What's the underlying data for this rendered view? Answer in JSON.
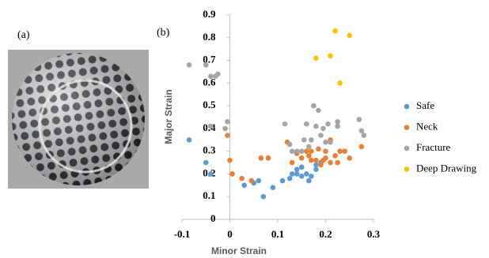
{
  "chart_data": {
    "type": "scatter",
    "annotations": [
      "(a)",
      "(b)"
    ],
    "xlabel": "Minor Strain",
    "ylabel": "Major Strain",
    "xlim": [
      -0.1,
      0.3
    ],
    "xticks": [
      -0.1,
      0,
      0.1,
      0.2,
      0.3
    ],
    "ylim": [
      0,
      0.9
    ],
    "yticks": [
      0,
      0.1,
      0.2,
      0.3,
      0.4,
      0.5,
      0.6,
      0.7,
      0.8,
      0.9
    ],
    "grid": false,
    "legend": "right",
    "series": [
      {
        "name": "Safe",
        "color": "#5b9bd5",
        "x": [
          -0.085,
          -0.05,
          -0.04,
          0.03,
          0.05,
          0.06,
          0.07,
          0.09,
          0.11,
          0.125,
          0.13,
          0.14,
          0.15,
          0.15,
          0.16,
          0.165,
          0.17,
          0.18,
          0.18,
          0.19,
          0.14
        ],
        "values": [
          0.35,
          0.25,
          0.2,
          0.15,
          0.16,
          0.17,
          0.1,
          0.14,
          0.17,
          0.18,
          0.2,
          0.22,
          0.23,
          0.19,
          0.2,
          0.17,
          0.19,
          0.22,
          0.24,
          0.25,
          0.2
        ]
      },
      {
        "name": "Neck",
        "color": "#ed7d31",
        "x": [
          -0.005,
          0,
          0.005,
          0.025,
          0.045,
          0.065,
          0.08,
          0.12,
          0.13,
          0.14,
          0.15,
          0.16,
          0.165,
          0.17,
          0.18,
          0.185,
          0.19,
          0.2,
          0.2,
          0.21,
          0.21,
          0.22,
          0.225,
          0.23,
          0.24,
          0.25,
          0.275,
          0.17,
          0.195
        ],
        "values": [
          0.37,
          0.26,
          0.2,
          0.18,
          0.17,
          0.27,
          0.27,
          0.34,
          0.25,
          0.29,
          0.27,
          0.3,
          0.28,
          0.3,
          0.26,
          0.31,
          0.24,
          0.27,
          0.3,
          0.25,
          0.35,
          0.28,
          0.25,
          0.3,
          0.3,
          0.27,
          0.32,
          0.26,
          0.26
        ]
      },
      {
        "name": "Fracture",
        "color": "#a5a5a5",
        "x": [
          -0.085,
          -0.05,
          -0.04,
          -0.03,
          -0.025,
          -0.01,
          -0.005,
          -0.04,
          0.115,
          0.125,
          0.13,
          0.14,
          0.155,
          0.16,
          0.165,
          0.175,
          0.18,
          0.185,
          0.19,
          0.195,
          0.2,
          0.205,
          0.21,
          0.225,
          0.225,
          0.27,
          0.275,
          0.28,
          0.17,
          0.15
        ],
        "values": [
          0.68,
          0.68,
          0.63,
          0.63,
          0.64,
          0.4,
          0.43,
          0.41,
          0.42,
          0.33,
          0.3,
          0.3,
          0.35,
          0.42,
          0.32,
          0.5,
          0.41,
          0.48,
          0.37,
          0.4,
          0.34,
          0.42,
          0.34,
          0.43,
          0.41,
          0.44,
          0.39,
          0.37,
          0.35,
          0.3
        ]
      },
      {
        "name": "Deep Drawing",
        "color": "#ffc000",
        "x": [
          0.18,
          0.21,
          0.22,
          0.23,
          0.25
        ],
        "values": [
          0.71,
          0.72,
          0.83,
          0.6,
          0.81
        ]
      }
    ]
  }
}
